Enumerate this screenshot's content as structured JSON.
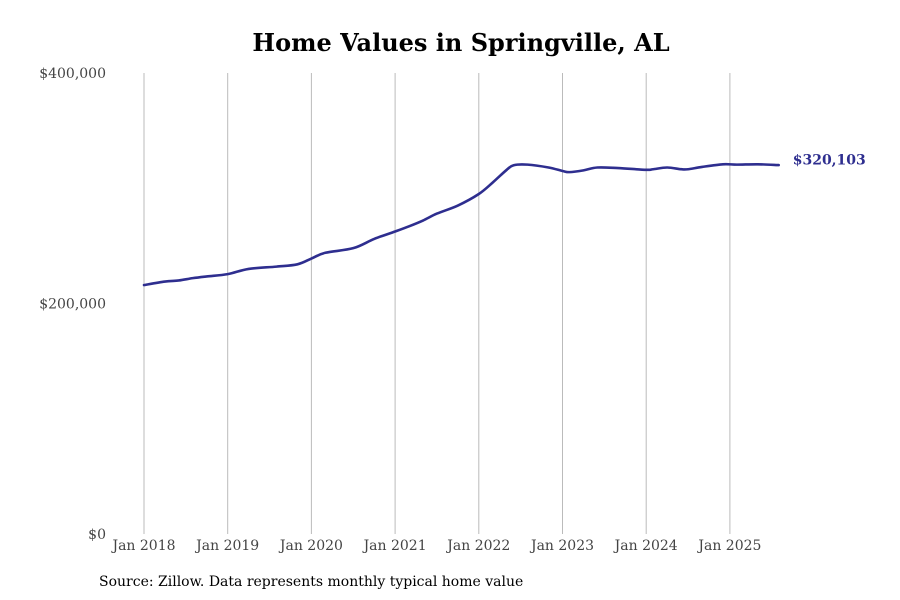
{
  "title": "Home Values in Springville, AL",
  "source": "Source: Zillow. Data represents monthly typical home value",
  "colors": {
    "line": "#2e2e8f",
    "grid": "#bbbbbb",
    "tick_text": "#444444"
  },
  "chart_data": {
    "type": "line",
    "title": "Home Values in Springville, AL",
    "xlabel": "",
    "ylabel": "",
    "grid": "vertical",
    "ylim": [
      0,
      400000
    ],
    "y_ticks": [
      {
        "value": 0,
        "label": "$0"
      },
      {
        "value": 200000,
        "label": "$200,000"
      },
      {
        "value": 400000,
        "label": "$400,000"
      }
    ],
    "x_ticks": [
      {
        "value": "2018-01",
        "label": "Jan 2018"
      },
      {
        "value": "2019-01",
        "label": "Jan 2019"
      },
      {
        "value": "2020-01",
        "label": "Jan 2020"
      },
      {
        "value": "2021-01",
        "label": "Jan 2021"
      },
      {
        "value": "2022-01",
        "label": "Jan 2022"
      },
      {
        "value": "2023-01",
        "label": "Jan 2023"
      },
      {
        "value": "2024-01",
        "label": "Jan 2024"
      },
      {
        "value": "2025-01",
        "label": "Jan 2025"
      }
    ],
    "end_label": "$320,103",
    "series": [
      {
        "x": [
          "2018-01",
          "2018-04",
          "2018-06",
          "2018-08",
          "2018-10",
          "2019-01",
          "2019-04",
          "2019-08",
          "2019-11",
          "2020-01",
          "2020-03",
          "2020-07",
          "2020-10",
          "2021-01",
          "2021-03",
          "2021-05",
          "2021-07",
          "2021-10",
          "2022-01",
          "2022-03",
          "2022-05",
          "2022-06",
          "2022-08",
          "2022-11",
          "2023-01",
          "2023-02",
          "2023-04",
          "2023-06",
          "2023-09",
          "2024-01",
          "2024-02",
          "2024-04",
          "2024-06",
          "2024-07",
          "2024-09",
          "2024-12",
          "2025-02",
          "2025-05",
          "2025-08"
        ],
        "y": [
          216000,
          219000,
          220000,
          222000,
          223500,
          225500,
          230000,
          232000,
          234000,
          239000,
          244000,
          248000,
          256000,
          262500,
          267000,
          272000,
          278000,
          285000,
          295000,
          305000,
          316000,
          320000,
          320500,
          318000,
          315000,
          314000,
          315500,
          318000,
          317500,
          316000,
          316500,
          318000,
          316500,
          316500,
          318500,
          320800,
          320500,
          320800,
          320103
        ]
      }
    ]
  }
}
